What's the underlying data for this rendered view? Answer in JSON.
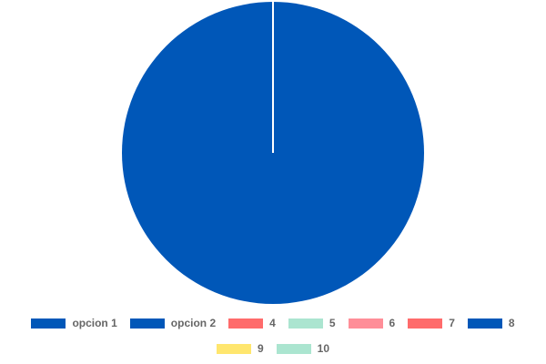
{
  "chart_data": {
    "type": "pie",
    "title": "",
    "series": [
      {
        "name": "opcion 1",
        "value": 0,
        "color": "#0057B8"
      },
      {
        "name": "opcion 2",
        "value": 100,
        "color": "#0057B8"
      },
      {
        "name": "4",
        "value": 0,
        "color": "#FF6B6B"
      },
      {
        "name": "5",
        "value": 0,
        "color": "#ABE5D0"
      },
      {
        "name": "6",
        "value": 0,
        "color": "#FF8E98"
      },
      {
        "name": "7",
        "value": 0,
        "color": "#FF6B6B"
      },
      {
        "name": "8",
        "value": 0,
        "color": "#0057B8"
      },
      {
        "name": "9",
        "value": 0,
        "color": "#FFE66E"
      },
      {
        "name": "10",
        "value": 0,
        "color": "#ABE5D0"
      }
    ],
    "legend_position": "bottom",
    "slice_border_color": "#ffffff"
  }
}
